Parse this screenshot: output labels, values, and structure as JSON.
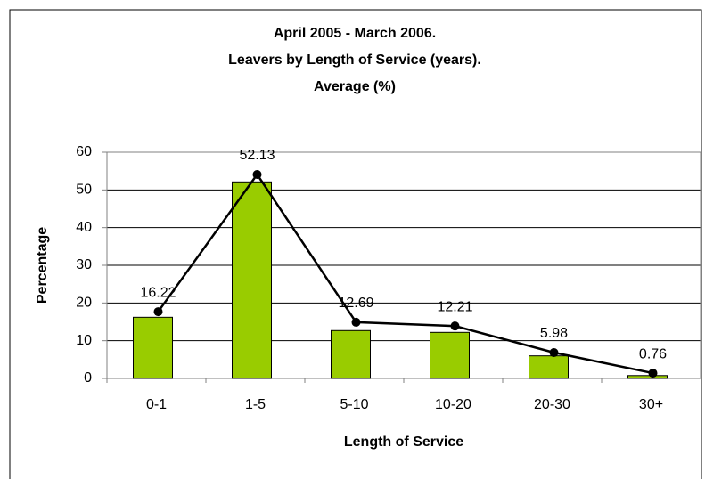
{
  "chart_data": {
    "type": "bar-line",
    "title": [
      "April 2005 - March 2006.",
      "Leavers by Length of Service (years).",
      "Average (%)"
    ],
    "x_label": "Length of Service",
    "y_label": "Percentage",
    "categories": [
      "0-1",
      "1-5",
      "5-10",
      "10-20",
      "20-30",
      "30+"
    ],
    "series": [
      {
        "type": "bar",
        "color": "#99cc00",
        "values": [
          16.22,
          52.13,
          12.69,
          12.21,
          5.98,
          0.76
        ]
      },
      {
        "type": "line",
        "color": "#000000",
        "values": [
          17.7,
          54.1,
          14.9,
          13.9,
          6.85,
          1.4
        ]
      }
    ],
    "ylim": [
      0,
      60
    ],
    "yticks": [
      0,
      10,
      20,
      30,
      40,
      50,
      60
    ],
    "grid": true
  }
}
